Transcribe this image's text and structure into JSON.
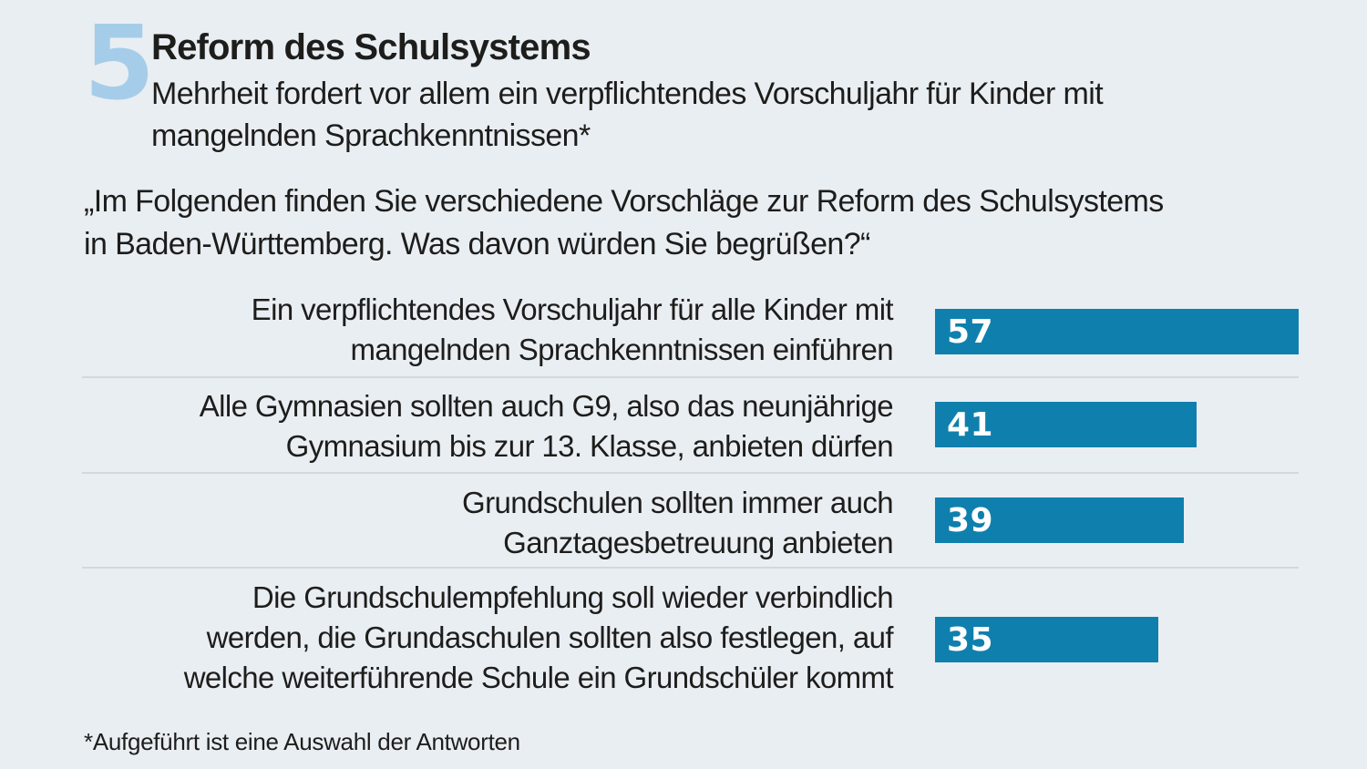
{
  "header": {
    "number": "5",
    "title": "Reform des Schulsystems",
    "subtitle": "Mehrheit fordert vor allem ein verpflichtendes Vorschuljahr für Kinder mit\nmangelnden Sprachkenntnissen*",
    "question": "„Im Folgenden finden Sie verschiedene Vorschläge zur Reform des Schulsystems\nin Baden-Württemberg. Was davon würden Sie begrüßen?“"
  },
  "chart_data": {
    "type": "bar",
    "orientation": "horizontal",
    "categories": [
      "Ein verpflichtendes Vorschuljahr für alle Kinder mit\nmangelnden Sprachkenntnissen einführen",
      "Alle Gymnasien sollten auch G9, also das neunjährige\nGymnasium bis zur 13. Klasse, anbieten dürfen",
      "Grundschulen sollten immer auch\nGanztagesbetreuung anbieten",
      "Die Grundschulempfehlung soll wieder verbindlich\nwerden, die Grundaschulen sollten also festlegen, auf\nwelche weiterführende Schule ein Grundschüler kommt"
    ],
    "values": [
      57,
      41,
      39,
      35
    ],
    "title": "Reform des Schulsystems",
    "xlabel": "",
    "ylabel": "",
    "xlim": [
      0,
      57
    ],
    "grid": false,
    "legend": false,
    "value_labels_inside_bar": true
  },
  "colors": {
    "background": "#e9eef3",
    "accent_light_blue": "#a5cde9",
    "bar": "#0f80ad",
    "bar_value_text": "#ffffff",
    "text": "#1d1d1b",
    "divider": "#d3d8dd"
  },
  "footnote": {
    "text": "*Aufgeführt ist eine Auswahl der Antworten"
  }
}
